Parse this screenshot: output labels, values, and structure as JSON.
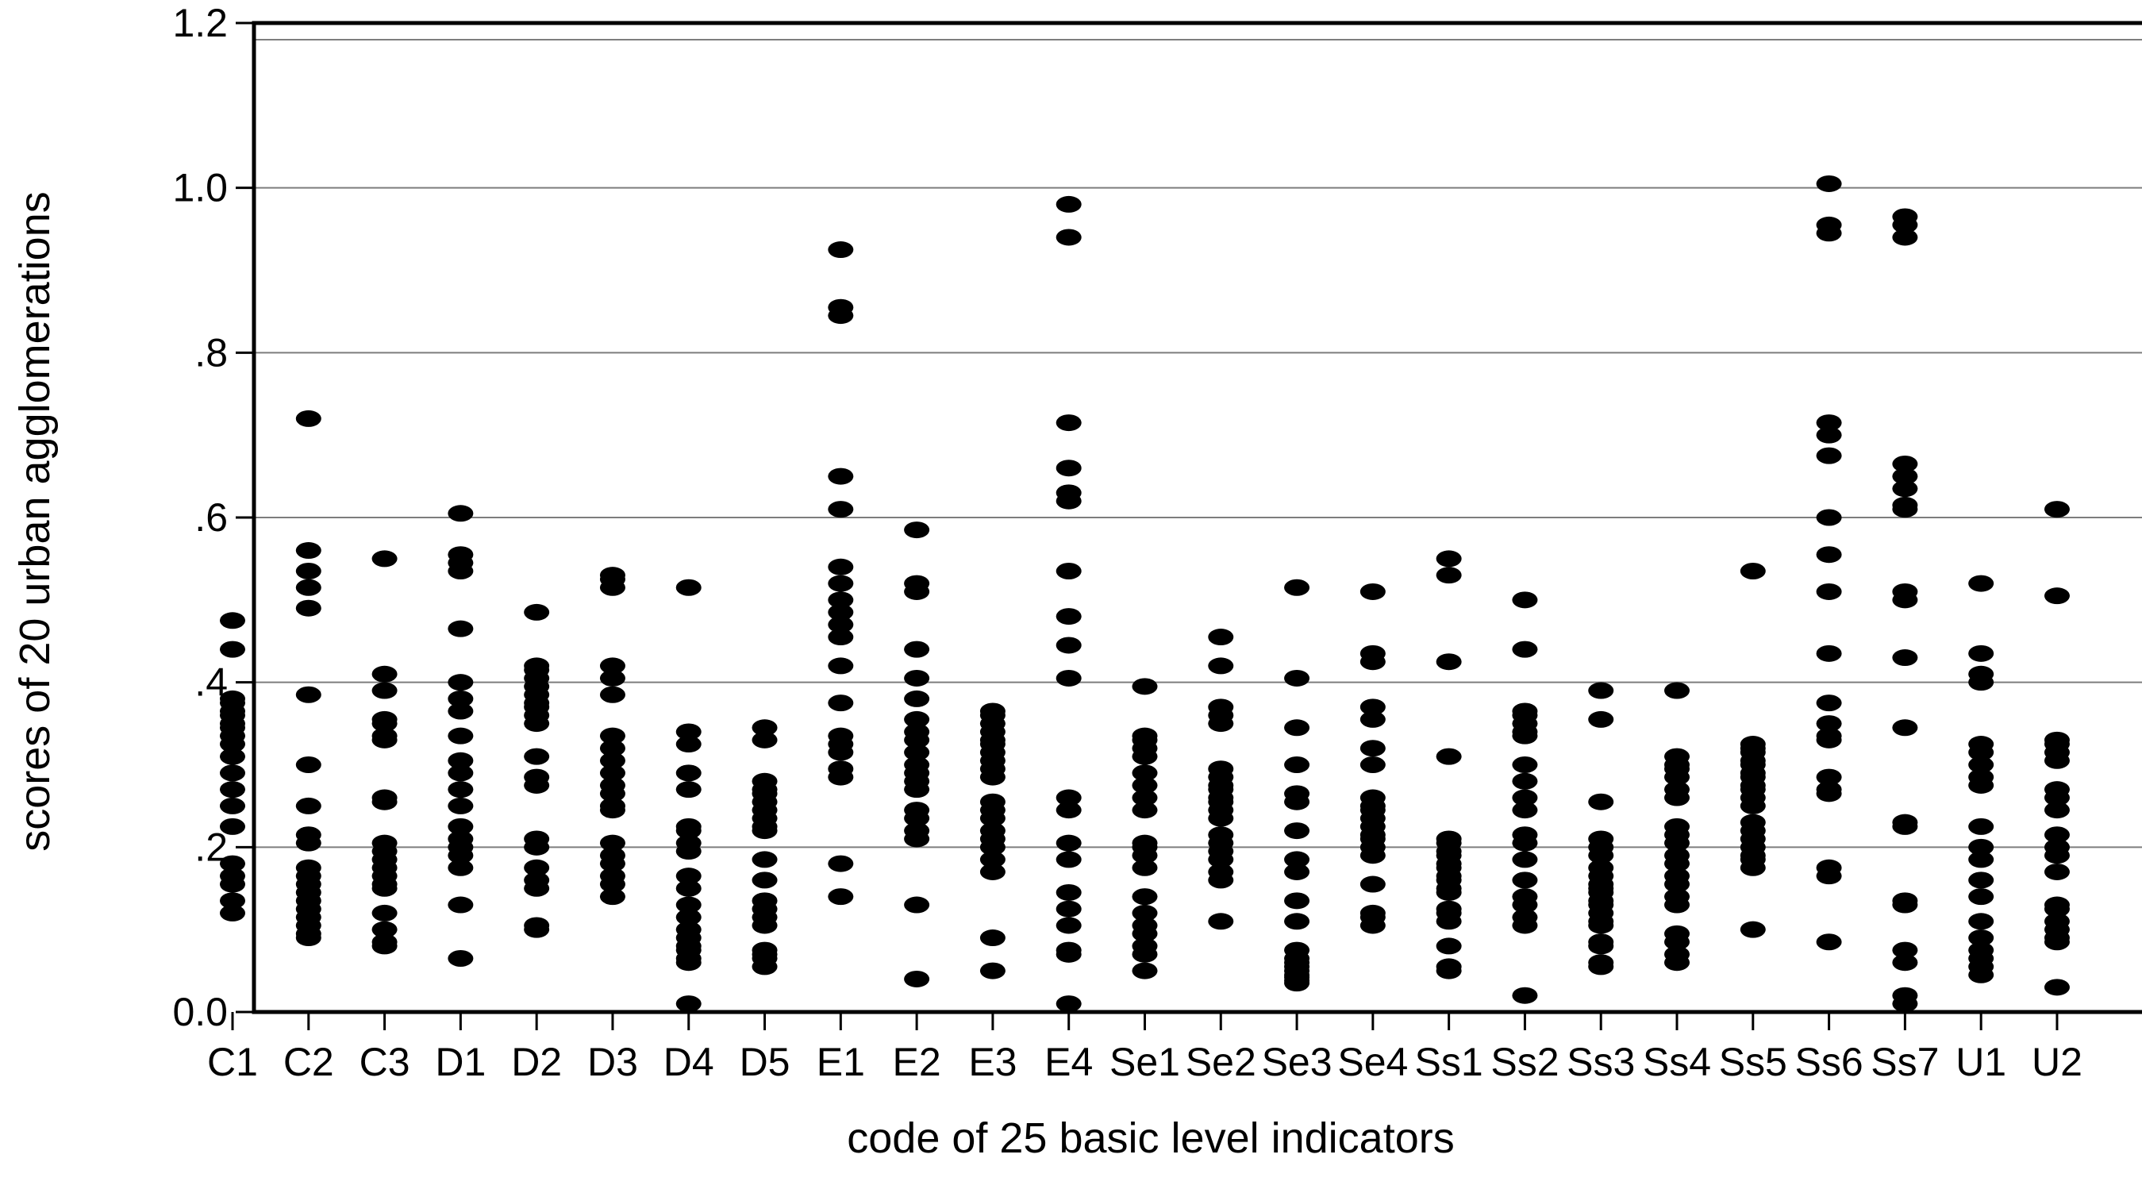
{
  "chart_data": {
    "type": "scatter",
    "variant": "strip-plot",
    "title": "",
    "xlabel": "code of 25 basic level indicators",
    "ylabel": "scores of 20 urban agglomerations",
    "ylim": [
      0,
      1.2
    ],
    "grid": "horizontal",
    "legend": "none",
    "point_color": "#000000",
    "axis_color": "#000000",
    "grid_color": "#7d7d7d",
    "yticks": {
      "values": [
        0.0,
        0.2,
        0.4,
        0.6,
        0.8,
        1.0,
        1.2
      ],
      "labels": [
        "0.0",
        ".2",
        ".4",
        ".6",
        ".8",
        "1.0",
        "1.2"
      ]
    },
    "grid_values": [
      0.2,
      0.4,
      0.6,
      0.8,
      1.0
    ],
    "categories": [
      "C1",
      "C2",
      "C3",
      "D1",
      "D2",
      "D3",
      "D4",
      "D5",
      "E1",
      "E2",
      "E3",
      "E4",
      "Se1",
      "Se2",
      "Se3",
      "Se4",
      "Ss1",
      "Ss2",
      "Ss3",
      "Ss4",
      "Ss5",
      "Ss6",
      "Ss7",
      "U1",
      "U2"
    ],
    "values_by_category": [
      [
        0.475,
        0.44,
        0.38,
        0.375,
        0.365,
        0.36,
        0.35,
        0.345,
        0.335,
        0.325,
        0.31,
        0.29,
        0.27,
        0.25,
        0.225,
        0.18,
        0.165,
        0.155,
        0.135,
        0.12
      ],
      [
        0.72,
        0.56,
        0.535,
        0.515,
        0.49,
        0.385,
        0.3,
        0.25,
        0.215,
        0.205,
        0.175,
        0.165,
        0.155,
        0.145,
        0.135,
        0.125,
        0.115,
        0.105,
        0.095,
        0.09
      ],
      [
        0.55,
        0.41,
        0.39,
        0.355,
        0.35,
        0.335,
        0.33,
        0.26,
        0.255,
        0.205,
        0.195,
        0.185,
        0.175,
        0.165,
        0.155,
        0.15,
        0.12,
        0.1,
        0.085,
        0.08
      ],
      [
        0.605,
        0.555,
        0.545,
        0.535,
        0.465,
        0.4,
        0.38,
        0.365,
        0.335,
        0.305,
        0.29,
        0.27,
        0.25,
        0.225,
        0.21,
        0.2,
        0.19,
        0.175,
        0.13,
        0.065
      ],
      [
        0.485,
        0.42,
        0.415,
        0.405,
        0.395,
        0.385,
        0.375,
        0.37,
        0.36,
        0.35,
        0.31,
        0.285,
        0.275,
        0.21,
        0.2,
        0.175,
        0.16,
        0.15,
        0.105,
        0.1
      ],
      [
        0.53,
        0.525,
        0.515,
        0.42,
        0.405,
        0.385,
        0.335,
        0.32,
        0.305,
        0.29,
        0.275,
        0.265,
        0.25,
        0.245,
        0.205,
        0.19,
        0.18,
        0.165,
        0.155,
        0.14
      ],
      [
        0.515,
        0.34,
        0.325,
        0.29,
        0.27,
        0.225,
        0.22,
        0.205,
        0.195,
        0.165,
        0.15,
        0.13,
        0.115,
        0.1,
        0.09,
        0.08,
        0.075,
        0.065,
        0.06,
        0.01
      ],
      [
        0.345,
        0.33,
        0.28,
        0.27,
        0.265,
        0.255,
        0.245,
        0.235,
        0.225,
        0.22,
        0.185,
        0.16,
        0.135,
        0.125,
        0.115,
        0.105,
        0.075,
        0.07,
        0.065,
        0.055
      ],
      [
        0.925,
        0.855,
        0.845,
        0.65,
        0.61,
        0.54,
        0.52,
        0.5,
        0.485,
        0.47,
        0.455,
        0.42,
        0.375,
        0.335,
        0.325,
        0.315,
        0.295,
        0.285,
        0.18,
        0.14
      ],
      [
        0.585,
        0.52,
        0.51,
        0.44,
        0.405,
        0.38,
        0.355,
        0.34,
        0.33,
        0.315,
        0.3,
        0.29,
        0.28,
        0.27,
        0.245,
        0.235,
        0.22,
        0.21,
        0.13,
        0.04
      ],
      [
        0.365,
        0.36,
        0.35,
        0.34,
        0.33,
        0.325,
        0.315,
        0.305,
        0.295,
        0.285,
        0.255,
        0.245,
        0.235,
        0.22,
        0.21,
        0.2,
        0.185,
        0.17,
        0.09,
        0.05
      ],
      [
        0.98,
        0.94,
        0.715,
        0.66,
        0.63,
        0.62,
        0.535,
        0.48,
        0.445,
        0.405,
        0.26,
        0.245,
        0.205,
        0.185,
        0.145,
        0.125,
        0.105,
        0.075,
        0.07,
        0.01
      ],
      [
        0.395,
        0.335,
        0.33,
        0.32,
        0.31,
        0.29,
        0.275,
        0.26,
        0.245,
        0.205,
        0.2,
        0.19,
        0.175,
        0.14,
        0.12,
        0.105,
        0.095,
        0.08,
        0.07,
        0.05
      ],
      [
        0.455,
        0.42,
        0.37,
        0.36,
        0.35,
        0.295,
        0.285,
        0.275,
        0.27,
        0.26,
        0.255,
        0.245,
        0.235,
        0.215,
        0.205,
        0.195,
        0.185,
        0.17,
        0.16,
        0.11
      ],
      [
        0.515,
        0.405,
        0.345,
        0.3,
        0.265,
        0.255,
        0.22,
        0.185,
        0.17,
        0.135,
        0.11,
        0.075,
        0.065,
        0.06,
        0.055,
        0.05,
        0.045,
        0.042,
        0.038,
        0.035
      ],
      [
        0.51,
        0.435,
        0.425,
        0.37,
        0.355,
        0.32,
        0.3,
        0.26,
        0.25,
        0.245,
        0.235,
        0.225,
        0.215,
        0.21,
        0.2,
        0.19,
        0.155,
        0.12,
        0.115,
        0.105
      ],
      [
        0.55,
        0.53,
        0.425,
        0.31,
        0.21,
        0.205,
        0.195,
        0.19,
        0.18,
        0.175,
        0.165,
        0.16,
        0.15,
        0.145,
        0.125,
        0.12,
        0.11,
        0.08,
        0.055,
        0.05
      ],
      [
        0.5,
        0.44,
        0.365,
        0.36,
        0.35,
        0.34,
        0.335,
        0.3,
        0.28,
        0.26,
        0.245,
        0.215,
        0.205,
        0.185,
        0.16,
        0.14,
        0.13,
        0.115,
        0.105,
        0.02
      ],
      [
        0.39,
        0.355,
        0.255,
        0.21,
        0.2,
        0.19,
        0.175,
        0.165,
        0.155,
        0.15,
        0.145,
        0.135,
        0.13,
        0.12,
        0.11,
        0.105,
        0.085,
        0.08,
        0.06,
        0.055
      ],
      [
        0.39,
        0.31,
        0.3,
        0.295,
        0.285,
        0.27,
        0.26,
        0.225,
        0.215,
        0.205,
        0.19,
        0.18,
        0.165,
        0.155,
        0.14,
        0.13,
        0.095,
        0.085,
        0.07,
        0.06
      ],
      [
        0.535,
        0.325,
        0.32,
        0.315,
        0.305,
        0.3,
        0.29,
        0.285,
        0.275,
        0.27,
        0.26,
        0.25,
        0.23,
        0.22,
        0.21,
        0.2,
        0.19,
        0.185,
        0.175,
        0.1
      ],
      [
        1.005,
        0.955,
        0.945,
        0.715,
        0.7,
        0.675,
        0.6,
        0.555,
        0.51,
        0.435,
        0.375,
        0.35,
        0.335,
        0.33,
        0.285,
        0.27,
        0.265,
        0.175,
        0.165,
        0.085
      ],
      [
        0.965,
        0.955,
        0.94,
        0.665,
        0.65,
        0.635,
        0.615,
        0.61,
        0.51,
        0.5,
        0.43,
        0.345,
        0.23,
        0.225,
        0.135,
        0.13,
        0.075,
        0.06,
        0.02,
        0.01
      ],
      [
        0.52,
        0.435,
        0.41,
        0.4,
        0.325,
        0.315,
        0.3,
        0.285,
        0.275,
        0.225,
        0.2,
        0.185,
        0.16,
        0.14,
        0.11,
        0.09,
        0.075,
        0.065,
        0.055,
        0.045
      ],
      [
        0.61,
        0.505,
        0.33,
        0.325,
        0.315,
        0.305,
        0.27,
        0.26,
        0.245,
        0.215,
        0.2,
        0.19,
        0.17,
        0.13,
        0.125,
        0.11,
        0.1,
        0.09,
        0.085,
        0.03
      ]
    ]
  }
}
